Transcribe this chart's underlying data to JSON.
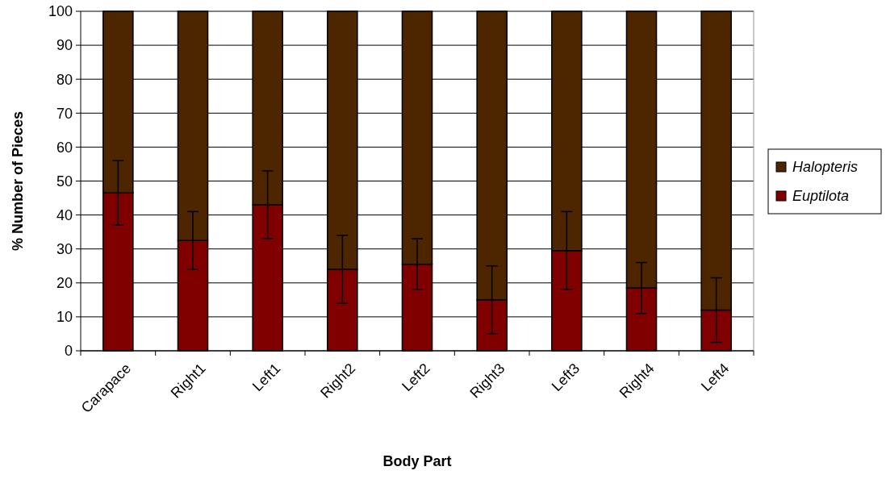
{
  "chart_data": {
    "type": "bar",
    "stacked": true,
    "xlabel": "Body Part",
    "ylabel": "% Number of Pieces",
    "categories": [
      "Carapace",
      "Right1",
      "Left1",
      "Right2",
      "Left2",
      "Right3",
      "Left3",
      "Right4",
      "Left4"
    ],
    "series": [
      {
        "name": "Euptilota",
        "color": "#800000",
        "values": [
          46.5,
          32.5,
          43,
          24,
          25.5,
          15,
          29.5,
          18.5,
          12
        ],
        "errors": [
          9.5,
          8.5,
          10,
          10,
          7.5,
          10,
          11.5,
          7.5,
          9.5
        ]
      },
      {
        "name": "Halopteris",
        "color": "#4d2600",
        "values": [
          53.5,
          67.5,
          57,
          76,
          74.5,
          85,
          70.5,
          81.5,
          88
        ]
      }
    ],
    "ylim": [
      0,
      100
    ],
    "yticks": [
      0,
      10,
      20,
      30,
      40,
      50,
      60,
      70,
      80,
      90,
      100
    ],
    "grid": "y",
    "legend": "right"
  }
}
